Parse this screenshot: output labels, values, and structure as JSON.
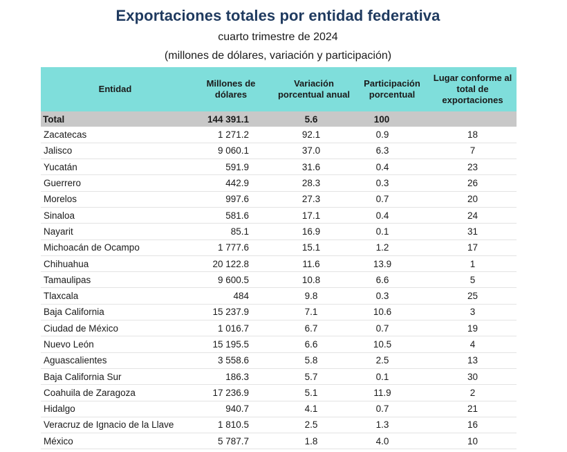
{
  "title": "Exportaciones totales por entidad federativa",
  "subtitle1": "cuarto trimestre de 2024",
  "subtitle2": "(millones de dólares, variación y participación)",
  "headers": {
    "entidad": "Entidad",
    "millones": "Millones de dólares",
    "variacion": "Variación porcentual anual",
    "participacion": "Participación porcentual",
    "lugar": "Lugar conforme al total de exportaciones"
  },
  "total": {
    "name": "Total",
    "millones": "144 391.1",
    "variacion": "5.6",
    "participacion": "100",
    "lugar": ""
  },
  "rows": [
    {
      "name": "Zacatecas",
      "millones": "1 271.2",
      "variacion": "92.1",
      "participacion": "0.9",
      "lugar": "18"
    },
    {
      "name": "Jalisco",
      "millones": "9 060.1",
      "variacion": "37.0",
      "participacion": "6.3",
      "lugar": "7"
    },
    {
      "name": "Yucatán",
      "millones": "591.9",
      "variacion": "31.6",
      "participacion": "0.4",
      "lugar": "23"
    },
    {
      "name": "Guerrero",
      "millones": "442.9",
      "variacion": "28.3",
      "participacion": "0.3",
      "lugar": "26"
    },
    {
      "name": "Morelos",
      "millones": "997.6",
      "variacion": "27.3",
      "participacion": "0.7",
      "lugar": "20"
    },
    {
      "name": "Sinaloa",
      "millones": "581.6",
      "variacion": "17.1",
      "participacion": "0.4",
      "lugar": "24"
    },
    {
      "name": "Nayarit",
      "millones": "85.1",
      "variacion": "16.9",
      "participacion": "0.1",
      "lugar": "31"
    },
    {
      "name": "Michoacán de Ocampo",
      "millones": "1 777.6",
      "variacion": "15.1",
      "participacion": "1.2",
      "lugar": "17"
    },
    {
      "name": "Chihuahua",
      "millones": "20 122.8",
      "variacion": "11.6",
      "participacion": "13.9",
      "lugar": "1"
    },
    {
      "name": "Tamaulipas",
      "millones": "9 600.5",
      "variacion": "10.8",
      "participacion": "6.6",
      "lugar": "5"
    },
    {
      "name": "Tlaxcala",
      "millones": "484",
      "variacion": "9.8",
      "participacion": "0.3",
      "lugar": "25"
    },
    {
      "name": "Baja California",
      "millones": "15 237.9",
      "variacion": "7.1",
      "participacion": "10.6",
      "lugar": "3"
    },
    {
      "name": "Ciudad de México",
      "millones": "1 016.7",
      "variacion": "6.7",
      "participacion": "0.7",
      "lugar": "19"
    },
    {
      "name": "Nuevo León",
      "millones": "15 195.5",
      "variacion": "6.6",
      "participacion": "10.5",
      "lugar": "4"
    },
    {
      "name": "Aguascalientes",
      "millones": "3 558.6",
      "variacion": "5.8",
      "participacion": "2.5",
      "lugar": "13"
    },
    {
      "name": "Baja California Sur",
      "millones": "186.3",
      "variacion": "5.7",
      "participacion": "0.1",
      "lugar": "30"
    },
    {
      "name": "Coahuila de Zaragoza",
      "millones": "17 236.9",
      "variacion": "5.1",
      "participacion": "11.9",
      "lugar": "2"
    },
    {
      "name": "Hidalgo",
      "millones": "940.7",
      "variacion": "4.1",
      "participacion": "0.7",
      "lugar": "21"
    },
    {
      "name": "Veracruz de Ignacio de la Llave",
      "millones": "1 810.5",
      "variacion": "2.5",
      "participacion": "1.3",
      "lugar": "16"
    },
    {
      "name": "México",
      "millones": "5 787.7",
      "variacion": "1.8",
      "participacion": "4.0",
      "lugar": "10"
    }
  ]
}
